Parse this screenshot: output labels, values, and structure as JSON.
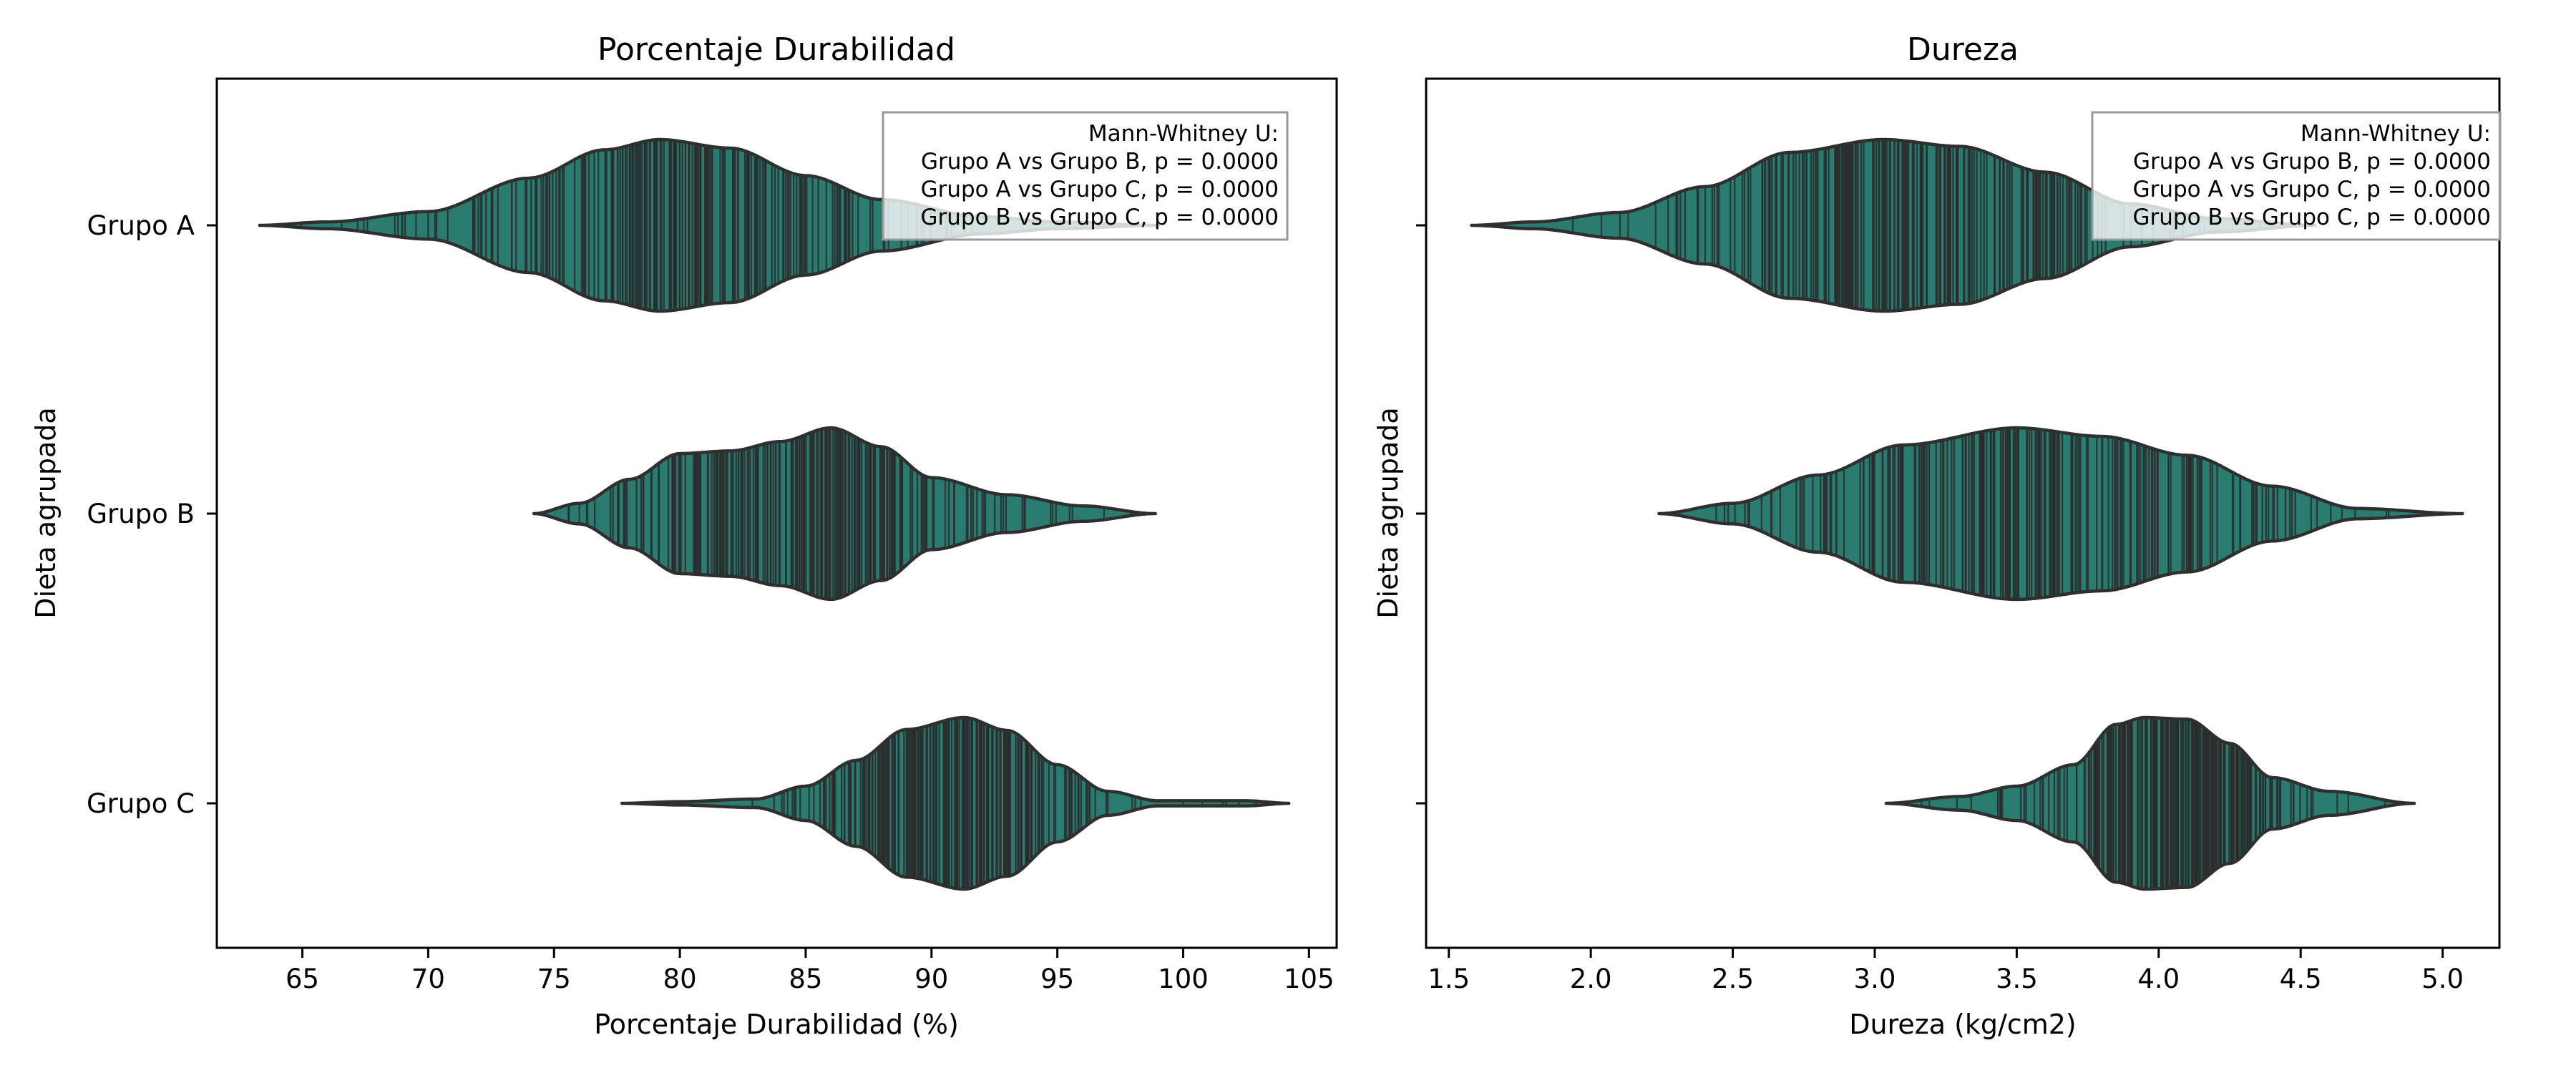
{
  "chart_data": [
    {
      "type": "violin",
      "orientation": "horizontal",
      "title": "Porcentaje Durabilidad",
      "xlabel": "Porcentaje Durabilidad (%)",
      "ylabel": "Dieta agrupada",
      "xlim": [
        61.6,
        106.1
      ],
      "xticks": [
        65,
        70,
        75,
        80,
        85,
        90,
        95,
        100,
        105
      ],
      "categories": [
        "Grupo A",
        "Grupo B",
        "Grupo C"
      ],
      "fill_color": "#2a7b70",
      "inner": "stick",
      "series": [
        {
          "category": "Grupo A",
          "min": 63.3,
          "max": 99.0,
          "mode": 79.2,
          "density_profile": [
            [
              63.3,
              0.0
            ],
            [
              66,
              0.04
            ],
            [
              70,
              0.16
            ],
            [
              74,
              0.55
            ],
            [
              77,
              0.88
            ],
            [
              79.2,
              1.0
            ],
            [
              82,
              0.9
            ],
            [
              85,
              0.58
            ],
            [
              88,
              0.3
            ],
            [
              92,
              0.1
            ],
            [
              95,
              0.04
            ],
            [
              99,
              0.0
            ]
          ]
        },
        {
          "category": "Grupo B",
          "min": 74.2,
          "max": 98.9,
          "mode": 86.0,
          "density_profile": [
            [
              74.2,
              0.0
            ],
            [
              76,
              0.12
            ],
            [
              78,
              0.4
            ],
            [
              80,
              0.7
            ],
            [
              82,
              0.73
            ],
            [
              84,
              0.84
            ],
            [
              86,
              1.0
            ],
            [
              88,
              0.78
            ],
            [
              90,
              0.42
            ],
            [
              93,
              0.22
            ],
            [
              96,
              0.09
            ],
            [
              98.9,
              0.0
            ]
          ]
        },
        {
          "category": "Grupo C",
          "min": 77.7,
          "max": 104.2,
          "mode": 91.3,
          "density_profile": [
            [
              77.7,
              0.0
            ],
            [
              80,
              0.02
            ],
            [
              83,
              0.05
            ],
            [
              85,
              0.2
            ],
            [
              87,
              0.5
            ],
            [
              89,
              0.86
            ],
            [
              91.3,
              1.0
            ],
            [
              93,
              0.85
            ],
            [
              95,
              0.45
            ],
            [
              97,
              0.14
            ],
            [
              99,
              0.03
            ],
            [
              101,
              0.03
            ],
            [
              102.5,
              0.03
            ],
            [
              104.2,
              0.0
            ]
          ]
        }
      ],
      "annotation": {
        "header": "Mann-Whitney U:",
        "lines": [
          "Grupo A vs Grupo B, p = 0.0000",
          "Grupo A vs Grupo C, p = 0.0000",
          "Grupo B vs Grupo C, p = 0.0000"
        ],
        "placement": "top-right"
      }
    },
    {
      "type": "violin",
      "orientation": "horizontal",
      "title": "Dureza",
      "xlabel": "Dureza (kg/cm2)",
      "ylabel": "Dieta agrupada",
      "xlim": [
        1.42,
        5.2
      ],
      "xticks": [
        "1.5",
        "2.0",
        "2.5",
        "3.0",
        "3.5",
        "4.0",
        "4.5",
        "5.0"
      ],
      "categories": [
        "Grupo A",
        "Grupo B",
        "Grupo C"
      ],
      "fill_color": "#2a7b70",
      "inner": "stick",
      "series": [
        {
          "category": "Grupo A",
          "min": 1.58,
          "max": 4.55,
          "mode": 3.03,
          "density_profile": [
            [
              1.58,
              0.0
            ],
            [
              1.8,
              0.04
            ],
            [
              2.1,
              0.15
            ],
            [
              2.4,
              0.45
            ],
            [
              2.7,
              0.85
            ],
            [
              3.03,
              1.0
            ],
            [
              3.3,
              0.92
            ],
            [
              3.6,
              0.62
            ],
            [
              3.9,
              0.25
            ],
            [
              4.2,
              0.08
            ],
            [
              4.55,
              0.0
            ]
          ]
        },
        {
          "category": "Grupo B",
          "min": 2.24,
          "max": 5.07,
          "mode": 3.5,
          "density_profile": [
            [
              2.24,
              0.0
            ],
            [
              2.5,
              0.12
            ],
            [
              2.8,
              0.45
            ],
            [
              3.1,
              0.8
            ],
            [
              3.5,
              1.0
            ],
            [
              3.8,
              0.9
            ],
            [
              4.1,
              0.68
            ],
            [
              4.4,
              0.32
            ],
            [
              4.7,
              0.06
            ],
            [
              5.07,
              0.0
            ]
          ]
        },
        {
          "category": "Grupo C",
          "min": 3.04,
          "max": 4.9,
          "mode": 3.95,
          "density_profile": [
            [
              3.04,
              0.0
            ],
            [
              3.3,
              0.08
            ],
            [
              3.5,
              0.2
            ],
            [
              3.7,
              0.45
            ],
            [
              3.85,
              0.92
            ],
            [
              3.95,
              1.0
            ],
            [
              4.1,
              0.98
            ],
            [
              4.25,
              0.7
            ],
            [
              4.4,
              0.3
            ],
            [
              4.6,
              0.14
            ],
            [
              4.9,
              0.0
            ]
          ]
        }
      ],
      "annotation": {
        "header": "Mann-Whitney U:",
        "lines": [
          "Grupo A vs Grupo B, p = 0.0000",
          "Grupo A vs Grupo C, p = 0.0000",
          "Grupo B vs Grupo C, p = 0.0000"
        ],
        "placement": "top-right"
      }
    }
  ]
}
